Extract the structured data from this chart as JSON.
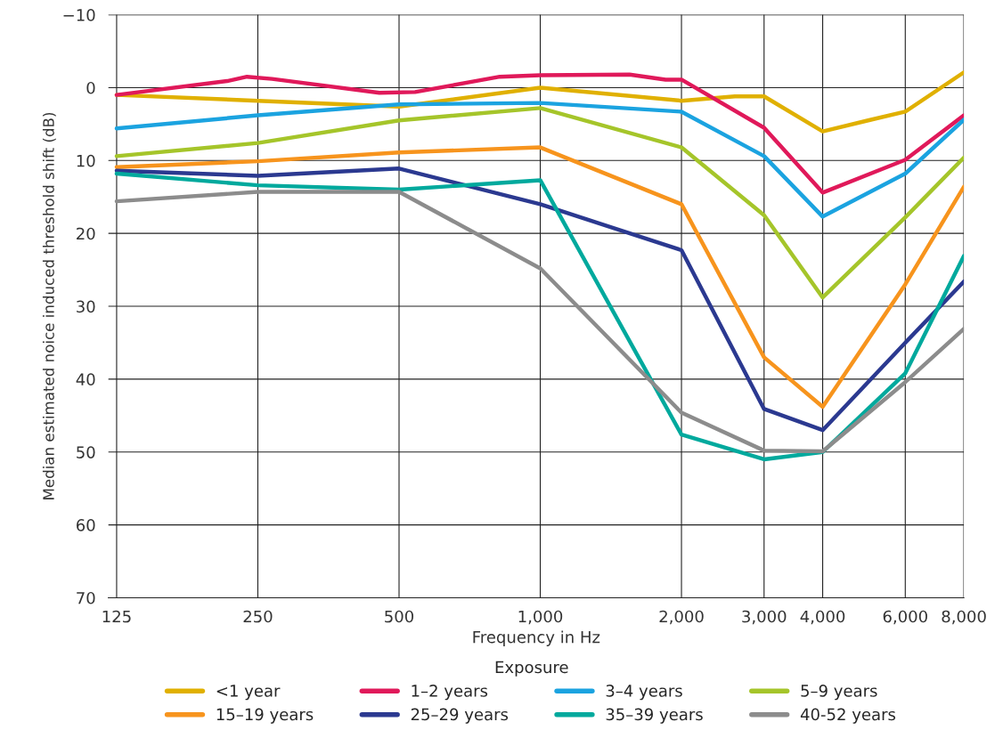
{
  "chart_data": {
    "type": "line",
    "xlabel": "Frequency in Hz",
    "ylabel": "Median estimated noice induced threshold shift (dB)",
    "legend_title": "Exposure",
    "log": "x",
    "xlim": [
      120,
      8000
    ],
    "ylim": [
      70,
      -10
    ],
    "xticks": [
      125,
      250,
      500,
      {
        "value": 1000,
        "label": "1,000"
      },
      {
        "value": 2000,
        "label": "2,000"
      },
      {
        "value": 3000,
        "label": "3,000"
      },
      {
        "value": 4000,
        "label": "4,000"
      },
      {
        "value": 6000,
        "label": "6,000"
      },
      {
        "value": 8000,
        "label": "8,000"
      }
    ],
    "yticks": [
      {
        "value": -10,
        "label": "−10"
      },
      0,
      10,
      20,
      30,
      40,
      50,
      60,
      70
    ],
    "grid": true,
    "legend": "bottom",
    "marker": "none",
    "line_style": "solid",
    "series": [
      {
        "name": "<1 year",
        "color": "#e0b000",
        "x": [
          125,
          250,
          500,
          1000,
          2000,
          2600,
          3000,
          4000,
          5000,
          6000,
          8000
        ],
        "values": [
          1.0,
          1.8,
          2.6,
          0,
          1.8,
          1.2,
          1.2,
          6.0,
          4.5,
          3.3,
          -2.1
        ]
      },
      {
        "name": "1–2 years",
        "color": "#e0195a",
        "x": [
          125,
          215,
          237,
          268,
          454,
          541,
          820,
          1000,
          1550,
          1850,
          2000,
          3000,
          4000,
          6000,
          8000
        ],
        "values": [
          1.0,
          -0.9,
          -1.5,
          -1.2,
          0.7,
          0.6,
          -1.5,
          -1.7,
          -1.8,
          -1.1,
          -1.1,
          5.5,
          14.4,
          9.9,
          3.8
        ]
      },
      {
        "name": "3–4 years",
        "color": "#1ba3e0",
        "x": [
          125,
          250,
          500,
          1000,
          2000,
          3000,
          4000,
          6000,
          8000
        ],
        "values": [
          5.6,
          3.8,
          2.3,
          2.1,
          3.3,
          9.4,
          17.7,
          11.8,
          4.4
        ]
      },
      {
        "name": "5–9 years",
        "color": "#a5c52a",
        "x": [
          125,
          250,
          500,
          1000,
          2000,
          3000,
          4000,
          6000,
          8000
        ],
        "values": [
          9.4,
          7.6,
          4.5,
          2.8,
          8.2,
          17.5,
          28.8,
          17.8,
          9.6
        ]
      },
      {
        "name": "15–19 years",
        "color": "#f7941d",
        "x": [
          125,
          250,
          500,
          1000,
          2000,
          3000,
          4000,
          6000,
          8000
        ],
        "values": [
          10.9,
          10.1,
          8.9,
          8.2,
          16.0,
          37.0,
          43.8,
          27.0,
          13.6
        ]
      },
      {
        "name": "25–29 years",
        "color": "#2b3990",
        "x": [
          125,
          250,
          500,
          1000,
          2000,
          3000,
          4000,
          6000,
          8000
        ],
        "values": [
          11.4,
          12.1,
          11.1,
          16.0,
          22.3,
          44.1,
          47.0,
          35.0,
          26.6
        ]
      },
      {
        "name": "35–39 years",
        "color": "#00a99d",
        "x": [
          125,
          250,
          500,
          1000,
          2000,
          3000,
          4000,
          6000,
          8000
        ],
        "values": [
          11.8,
          13.4,
          14.0,
          12.7,
          47.6,
          51.0,
          50.0,
          39.2,
          23.1
        ]
      },
      {
        "name": "40-52 years",
        "color": "#8c8c8c",
        "x": [
          125,
          250,
          500,
          1000,
          2000,
          3000,
          4000,
          6000,
          8000
        ],
        "values": [
          15.6,
          14.3,
          14.3,
          24.8,
          44.6,
          49.8,
          49.9,
          40.4,
          33.1
        ]
      }
    ]
  }
}
